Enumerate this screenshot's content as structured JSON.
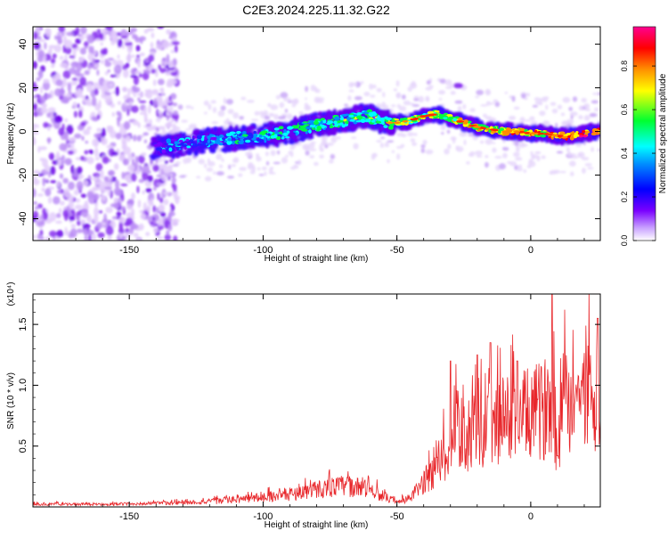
{
  "title": "C2E3.2024.225.11.32.G22",
  "chart_data": [
    {
      "type": "heatmap",
      "xlabel": "Height of straight line (km)",
      "ylabel": "Frequency (Hz)",
      "xlim": [
        -186,
        26
      ],
      "ylim": [
        -50,
        48
      ],
      "x_ticks": [
        -150,
        -100,
        -50,
        0
      ],
      "y_ticks": [
        -40,
        -20,
        0,
        20,
        40
      ],
      "colorbar": {
        "label": "Normalized spectral amplitude",
        "range": [
          0,
          0.98
        ],
        "ticks": [
          0.0,
          0.2,
          0.4,
          0.6,
          0.8
        ],
        "tick_labels": [
          "0.0",
          "0.2",
          "0.4",
          "0.6",
          "0.8"
        ],
        "colormap": [
          "#ffffff",
          "#7a00ff",
          "#0000ff",
          "#00ffff",
          "#00ff00",
          "#ffff00",
          "#ff8000",
          "#ff0000",
          "#ff00a0"
        ]
      },
      "ridge": {
        "x": [
          -141,
          -130,
          -120,
          -110,
          -100,
          -90,
          -80,
          -70,
          -60,
          -55,
          -50,
          -45,
          -40,
          -35,
          -30,
          -25,
          -20,
          -15,
          -10,
          -5,
          0,
          5,
          10,
          15,
          20,
          25
        ],
        "y": [
          -7,
          -6,
          -4,
          -3,
          -2,
          0,
          3,
          5,
          7,
          4,
          4,
          5,
          7,
          8,
          6,
          4,
          2,
          1,
          0,
          0,
          -1,
          -1,
          -2,
          -2,
          -1,
          0
        ]
      },
      "noise_region_x": [
        -186,
        -140
      ]
    },
    {
      "type": "line",
      "xlabel": "Height of straight line (km)",
      "ylabel": "SNR (10 * v/v)",
      "y_multiplier": "(x10⁴)",
      "xlim": [
        -186,
        26
      ],
      "ylim": [
        0,
        1.75
      ],
      "x_ticks": [
        -150,
        -100,
        -50,
        0
      ],
      "y_ticks": [
        0.5,
        1.0,
        1.5
      ],
      "y_tick_labels": [
        "0.5",
        "1.0",
        "1.5"
      ],
      "line_color": "#e8262a",
      "envelope": {
        "x": [
          -186,
          -160,
          -140,
          -120,
          -100,
          -90,
          -80,
          -70,
          -60,
          -55,
          -50,
          -45,
          -40,
          -35,
          -30,
          -28,
          -25,
          -20,
          -15,
          -10,
          -5,
          0,
          5,
          8,
          10,
          12,
          15,
          20,
          25,
          26
        ],
        "y": [
          0.03,
          0.03,
          0.04,
          0.06,
          0.11,
          0.14,
          0.2,
          0.24,
          0.2,
          0.12,
          0.05,
          0.1,
          0.28,
          0.45,
          0.7,
          0.9,
          0.8,
          0.85,
          0.9,
          1.0,
          1.0,
          1.05,
          1.1,
          1.3,
          0.6,
          1.2,
          1.2,
          1.25,
          1.3,
          1.38
        ]
      },
      "peaks": [
        {
          "x": -30,
          "y": 1.2
        },
        {
          "x": -20,
          "y": 1.25
        },
        {
          "x": -15,
          "y": 1.35
        },
        {
          "x": -5,
          "y": 1.2
        },
        {
          "x": 8,
          "y": 1.75
        },
        {
          "x": 10,
          "y": 0.42
        },
        {
          "x": 25,
          "y": 1.55
        }
      ]
    }
  ]
}
